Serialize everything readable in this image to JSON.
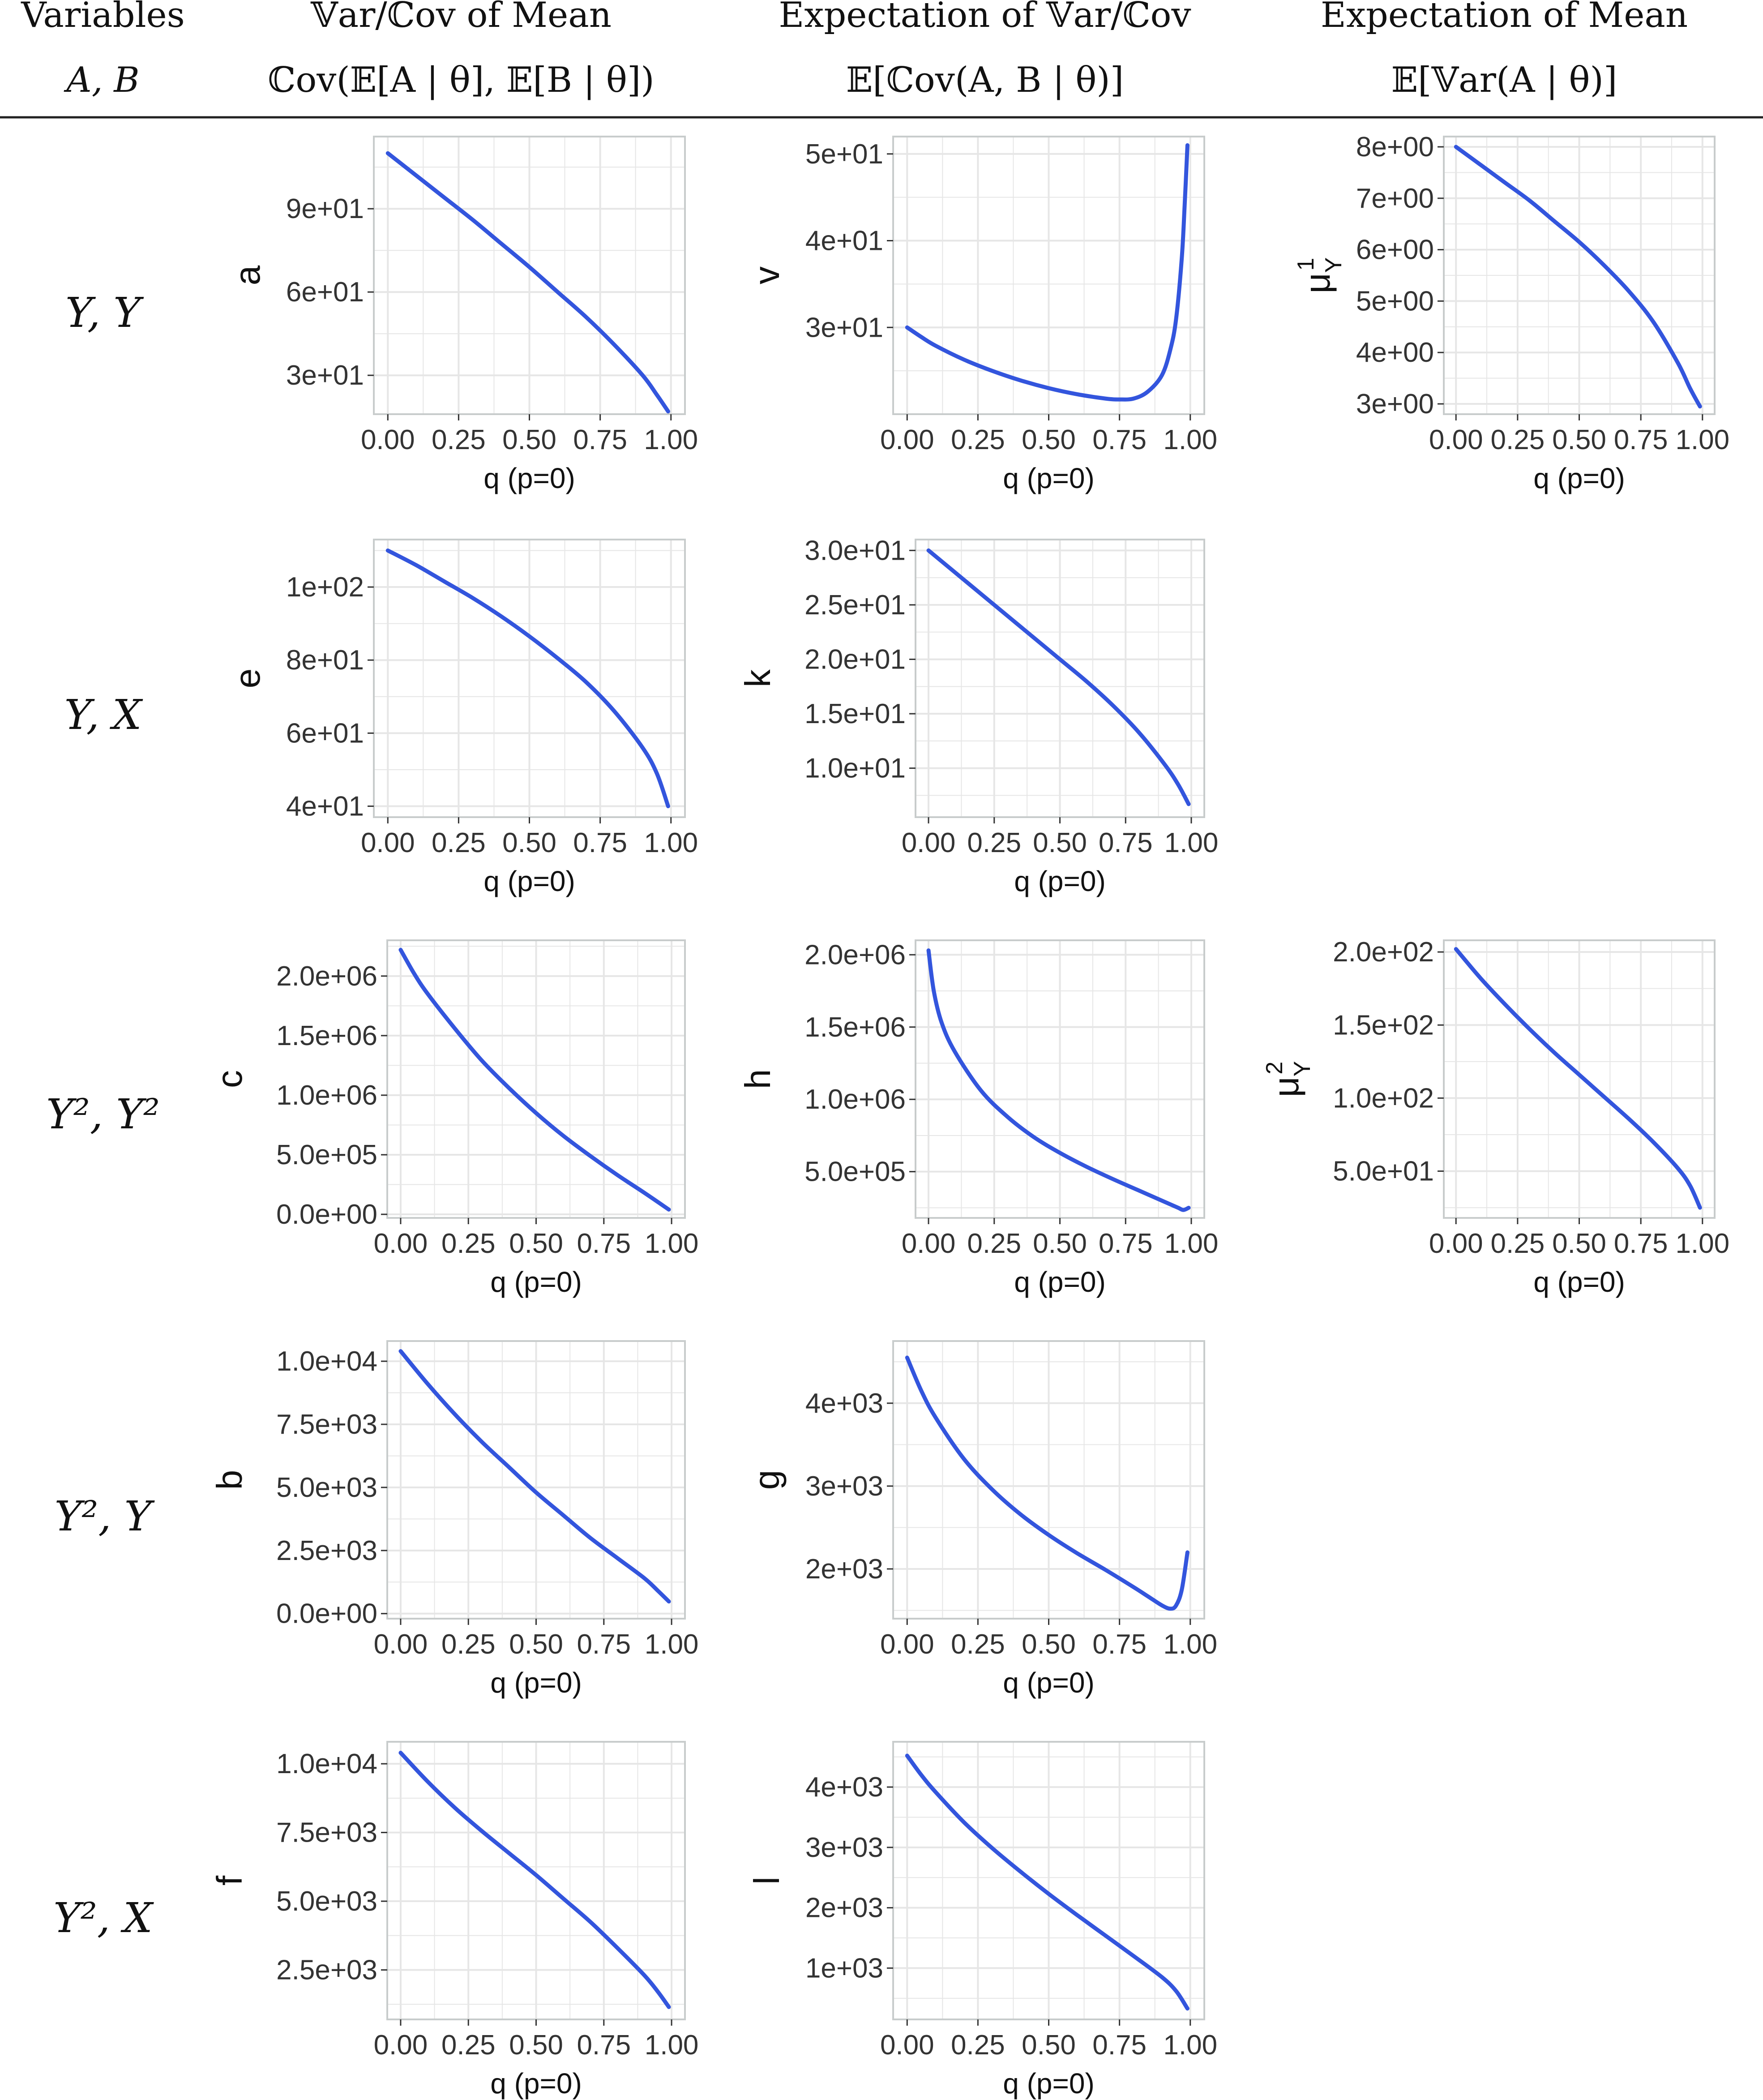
{
  "header": {
    "columns": [
      {
        "line1": "Variables",
        "line2": "A, B"
      },
      {
        "line1": "𝕍ar/ℂov of Mean",
        "line2": "ℂov(𝔼[A | θ], 𝔼[B | θ])"
      },
      {
        "line1": "Expectation of 𝕍ar/ℂov",
        "line2": "𝔼[ℂov(A, B | θ)]"
      },
      {
        "line1": "Expectation of Mean",
        "line2": "𝔼[𝕍ar(A | θ)]"
      }
    ]
  },
  "rows": [
    {
      "label": "Y, Y"
    },
    {
      "label": "Y, X"
    },
    {
      "label": "Y², Y²"
    },
    {
      "label": "Y², Y"
    },
    {
      "label": "Y², X"
    }
  ],
  "colors": {
    "line": "#3355dd",
    "grid": "#e6e6e6",
    "frame": "#c8cccc",
    "rule": "#222222"
  },
  "chart_data": [
    {
      "panel": "r0c0",
      "type": "line",
      "ylabel": "a",
      "xlabel": "q (p=0)",
      "xlim": [
        0,
        1
      ],
      "ylim": [
        16,
        116
      ],
      "grid": true,
      "xticks": [
        0,
        0.25,
        0.5,
        0.75,
        1
      ],
      "xtick_labels": [
        "0.00",
        "0.25",
        "0.50",
        "0.75",
        "1.00"
      ],
      "yticks": [
        30,
        60,
        90
      ],
      "ytick_labels": [
        "3e+01",
        "6e+01",
        "9e+01"
      ],
      "x": [
        0,
        0.1,
        0.2,
        0.3,
        0.4,
        0.5,
        0.6,
        0.7,
        0.8,
        0.9,
        0.95,
        0.99
      ],
      "y": [
        110,
        102,
        94,
        86,
        77.5,
        69,
        60,
        51,
        41,
        30,
        23,
        17
      ]
    },
    {
      "panel": "r0c1",
      "type": "line",
      "ylabel": "v",
      "xlabel": "q (p=0)",
      "xlim": [
        0,
        1
      ],
      "ylim": [
        20,
        52
      ],
      "grid": true,
      "xticks": [
        0,
        0.25,
        0.5,
        0.75,
        1
      ],
      "xtick_labels": [
        "0.00",
        "0.25",
        "0.50",
        "0.75",
        "1.00"
      ],
      "yticks": [
        30,
        40,
        50
      ],
      "ytick_labels": [
        "3e+01",
        "4e+01",
        "5e+01"
      ],
      "x": [
        0,
        0.05,
        0.1,
        0.2,
        0.3,
        0.4,
        0.5,
        0.6,
        0.7,
        0.75,
        0.8,
        0.85,
        0.9,
        0.93,
        0.95,
        0.97,
        0.98,
        0.99
      ],
      "y": [
        30,
        28.9,
        27.9,
        26.3,
        25,
        23.9,
        23,
        22.3,
        21.8,
        21.7,
        21.8,
        22.6,
        24.5,
        27.5,
        31,
        38,
        44,
        51
      ]
    },
    {
      "panel": "r0c2",
      "type": "line",
      "ylabel": "μ",
      "ylabel_sup": "1",
      "ylabel_sub": "Y",
      "xlabel": "q (p=0)",
      "xlim": [
        0,
        1
      ],
      "ylim": [
        2.8,
        8.2
      ],
      "grid": true,
      "xticks": [
        0,
        0.25,
        0.5,
        0.75,
        1
      ],
      "xtick_labels": [
        "0.00",
        "0.25",
        "0.50",
        "0.75",
        "1.00"
      ],
      "yticks": [
        3,
        4,
        5,
        6,
        7,
        8
      ],
      "ytick_labels": [
        "3e+00",
        "4e+00",
        "5e+00",
        "6e+00",
        "7e+00",
        "8e+00"
      ],
      "x": [
        0,
        0.1,
        0.2,
        0.3,
        0.4,
        0.5,
        0.6,
        0.7,
        0.8,
        0.9,
        0.95,
        0.99
      ],
      "y": [
        8,
        7.65,
        7.3,
        6.95,
        6.55,
        6.15,
        5.7,
        5.2,
        4.6,
        3.8,
        3.3,
        2.95
      ]
    },
    {
      "panel": "r1c0",
      "type": "line",
      "ylabel": "e",
      "xlabel": "q (p=0)",
      "xlim": [
        0,
        1
      ],
      "ylim": [
        37,
        113
      ],
      "grid": true,
      "xticks": [
        0,
        0.25,
        0.5,
        0.75,
        1
      ],
      "xtick_labels": [
        "0.00",
        "0.25",
        "0.50",
        "0.75",
        "1.00"
      ],
      "yticks": [
        40,
        60,
        80,
        100
      ],
      "ytick_labels": [
        "4e+01",
        "6e+01",
        "8e+01",
        "1e+02"
      ],
      "x": [
        0,
        0.1,
        0.2,
        0.3,
        0.4,
        0.5,
        0.6,
        0.7,
        0.8,
        0.9,
        0.95,
        0.99
      ],
      "y": [
        110,
        106,
        101.5,
        97,
        92,
        86.5,
        80.5,
        74,
        66,
        56,
        49,
        40
      ]
    },
    {
      "panel": "r1c1",
      "type": "line",
      "ylabel": "k",
      "xlabel": "q (p=0)",
      "xlim": [
        0,
        1
      ],
      "ylim": [
        5.5,
        31
      ],
      "grid": true,
      "xticks": [
        0,
        0.25,
        0.5,
        0.75,
        1
      ],
      "xtick_labels": [
        "0.00",
        "0.25",
        "0.50",
        "0.75",
        "1.00"
      ],
      "yticks": [
        10,
        15,
        20,
        25,
        30
      ],
      "ytick_labels": [
        "1.0e+01",
        "1.5e+01",
        "2.0e+01",
        "2.5e+01",
        "3.0e+01"
      ],
      "x": [
        0,
        0.1,
        0.2,
        0.3,
        0.4,
        0.5,
        0.6,
        0.7,
        0.8,
        0.9,
        0.95,
        0.99
      ],
      "y": [
        30,
        28,
        26,
        24,
        22,
        20,
        18,
        15.8,
        13.3,
        10.3,
        8.5,
        6.7
      ]
    },
    {
      "panel": "r2c0",
      "type": "line",
      "ylabel": "c",
      "xlabel": "q (p=0)",
      "xlim": [
        0,
        1
      ],
      "ylim": [
        -30000,
        2300000
      ],
      "grid": true,
      "xticks": [
        0,
        0.25,
        0.5,
        0.75,
        1
      ],
      "xtick_labels": [
        "0.00",
        "0.25",
        "0.50",
        "0.75",
        "1.00"
      ],
      "yticks": [
        0,
        500000,
        1000000,
        1500000,
        2000000
      ],
      "ytick_labels": [
        "0.0e+00",
        "5.0e+05",
        "1.0e+06",
        "1.5e+06",
        "2.0e+06"
      ],
      "x": [
        0,
        0.05,
        0.1,
        0.2,
        0.3,
        0.4,
        0.5,
        0.6,
        0.7,
        0.8,
        0.9,
        0.99
      ],
      "y": [
        2220000,
        2020000,
        1850000,
        1560000,
        1290000,
        1060000,
        850000,
        660000,
        490000,
        330000,
        180000,
        40000
      ]
    },
    {
      "panel": "r2c1",
      "type": "line",
      "ylabel": "h",
      "xlabel": "q (p=0)",
      "xlim": [
        0,
        1
      ],
      "ylim": [
        180000,
        2100000
      ],
      "grid": true,
      "xticks": [
        0,
        0.25,
        0.5,
        0.75,
        1
      ],
      "xtick_labels": [
        "0.00",
        "0.25",
        "0.50",
        "0.75",
        "1.00"
      ],
      "yticks": [
        500000,
        1000000,
        1500000,
        2000000
      ],
      "ytick_labels": [
        "5.0e+05",
        "1.0e+06",
        "1.5e+06",
        "2.0e+06"
      ],
      "x": [
        0,
        0.02,
        0.05,
        0.1,
        0.2,
        0.3,
        0.4,
        0.5,
        0.6,
        0.7,
        0.8,
        0.9,
        0.95,
        0.97,
        0.99
      ],
      "y": [
        2030000,
        1750000,
        1530000,
        1330000,
        1060000,
        880000,
        740000,
        630000,
        535000,
        450000,
        370000,
        290000,
        250000,
        235000,
        250000
      ]
    },
    {
      "panel": "r2c2",
      "type": "line",
      "ylabel": "μ",
      "ylabel_sup": "2",
      "ylabel_sub": "Y",
      "xlabel": "q (p=0)",
      "xlim": [
        0,
        1
      ],
      "ylim": [
        18,
        208
      ],
      "grid": true,
      "xticks": [
        0,
        0.25,
        0.5,
        0.75,
        1
      ],
      "xtick_labels": [
        "0.00",
        "0.25",
        "0.50",
        "0.75",
        "1.00"
      ],
      "yticks": [
        50,
        100,
        150,
        200
      ],
      "ytick_labels": [
        "5.0e+01",
        "1.0e+02",
        "1.5e+02",
        "2.0e+02"
      ],
      "x": [
        0,
        0.1,
        0.2,
        0.3,
        0.4,
        0.5,
        0.6,
        0.7,
        0.8,
        0.9,
        0.95,
        0.99
      ],
      "y": [
        202,
        182,
        164,
        147,
        131,
        116,
        101,
        86,
        70,
        52,
        40,
        25
      ]
    },
    {
      "panel": "r3c0",
      "type": "line",
      "ylabel": "b",
      "xlabel": "q (p=0)",
      "xlim": [
        0,
        1
      ],
      "ylim": [
        -200,
        10800
      ],
      "grid": true,
      "xticks": [
        0,
        0.25,
        0.5,
        0.75,
        1
      ],
      "xtick_labels": [
        "0.00",
        "0.25",
        "0.50",
        "0.75",
        "1.00"
      ],
      "yticks": [
        0,
        2500,
        5000,
        7500,
        10000
      ],
      "ytick_labels": [
        "0.0e+00",
        "2.5e+03",
        "5.0e+03",
        "7.5e+03",
        "1.0e+04"
      ],
      "x": [
        0,
        0.1,
        0.2,
        0.3,
        0.4,
        0.5,
        0.6,
        0.7,
        0.8,
        0.9,
        0.95,
        0.99
      ],
      "y": [
        10400,
        9100,
        7900,
        6800,
        5800,
        4800,
        3900,
        3000,
        2200,
        1400,
        900,
        480
      ]
    },
    {
      "panel": "r3c1",
      "type": "line",
      "ylabel": "g",
      "xlabel": "q (p=0)",
      "xlim": [
        0,
        1
      ],
      "ylim": [
        1400,
        4750
      ],
      "grid": true,
      "xticks": [
        0,
        0.25,
        0.5,
        0.75,
        1
      ],
      "xtick_labels": [
        "0.00",
        "0.25",
        "0.50",
        "0.75",
        "1.00"
      ],
      "yticks": [
        2000,
        3000,
        4000
      ],
      "ytick_labels": [
        "2e+03",
        "3e+03",
        "4e+03"
      ],
      "x": [
        0,
        0.05,
        0.1,
        0.2,
        0.3,
        0.4,
        0.5,
        0.6,
        0.7,
        0.8,
        0.85,
        0.9,
        0.93,
        0.95,
        0.97,
        0.99
      ],
      "y": [
        4550,
        4150,
        3830,
        3330,
        2960,
        2660,
        2410,
        2190,
        1990,
        1780,
        1670,
        1560,
        1520,
        1560,
        1750,
        2200
      ]
    },
    {
      "panel": "r4c0",
      "type": "line",
      "ylabel": "f",
      "xlabel": "q (p=0)",
      "xlim": [
        0,
        1
      ],
      "ylim": [
        700,
        10800
      ],
      "grid": true,
      "xticks": [
        0,
        0.25,
        0.5,
        0.75,
        1
      ],
      "xtick_labels": [
        "0.00",
        "0.25",
        "0.50",
        "0.75",
        "1.00"
      ],
      "yticks": [
        2500,
        5000,
        7500,
        10000
      ],
      "ytick_labels": [
        "2.5e+03",
        "5.0e+03",
        "7.5e+03",
        "1.0e+04"
      ],
      "x": [
        0,
        0.1,
        0.2,
        0.3,
        0.4,
        0.5,
        0.6,
        0.7,
        0.8,
        0.9,
        0.95,
        0.99
      ],
      "y": [
        10400,
        9350,
        8400,
        7550,
        6750,
        5950,
        5100,
        4250,
        3300,
        2300,
        1700,
        1150
      ]
    },
    {
      "panel": "r4c1",
      "type": "line",
      "ylabel": "l",
      "xlabel": "q (p=0)",
      "xlim": [
        0,
        1
      ],
      "ylim": [
        150,
        4750
      ],
      "grid": true,
      "xticks": [
        0,
        0.25,
        0.5,
        0.75,
        1
      ],
      "xtick_labels": [
        "0.00",
        "0.25",
        "0.50",
        "0.75",
        "1.00"
      ],
      "yticks": [
        1000,
        2000,
        3000,
        4000
      ],
      "ytick_labels": [
        "1e+03",
        "2e+03",
        "3e+03",
        "4e+03"
      ],
      "x": [
        0,
        0.05,
        0.1,
        0.2,
        0.3,
        0.4,
        0.5,
        0.6,
        0.7,
        0.8,
        0.9,
        0.95,
        0.99
      ],
      "y": [
        4520,
        4200,
        3920,
        3420,
        2990,
        2600,
        2230,
        1880,
        1540,
        1200,
        850,
        620,
        330
      ]
    }
  ]
}
